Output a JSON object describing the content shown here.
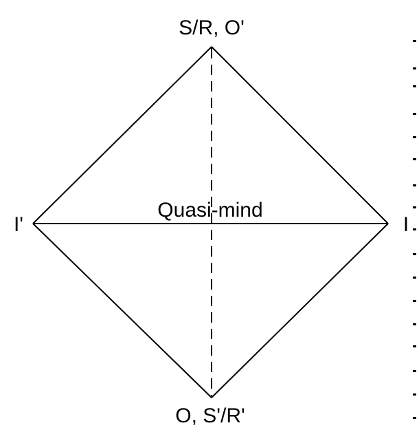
{
  "diagram": {
    "labels": {
      "top": "S/R, O'",
      "left": "I'",
      "right": "I",
      "bottom": "O, S'/R'",
      "center": "Quasi-mind"
    },
    "colors": {
      "stroke": "#000000",
      "background": "#ffffff"
    }
  }
}
